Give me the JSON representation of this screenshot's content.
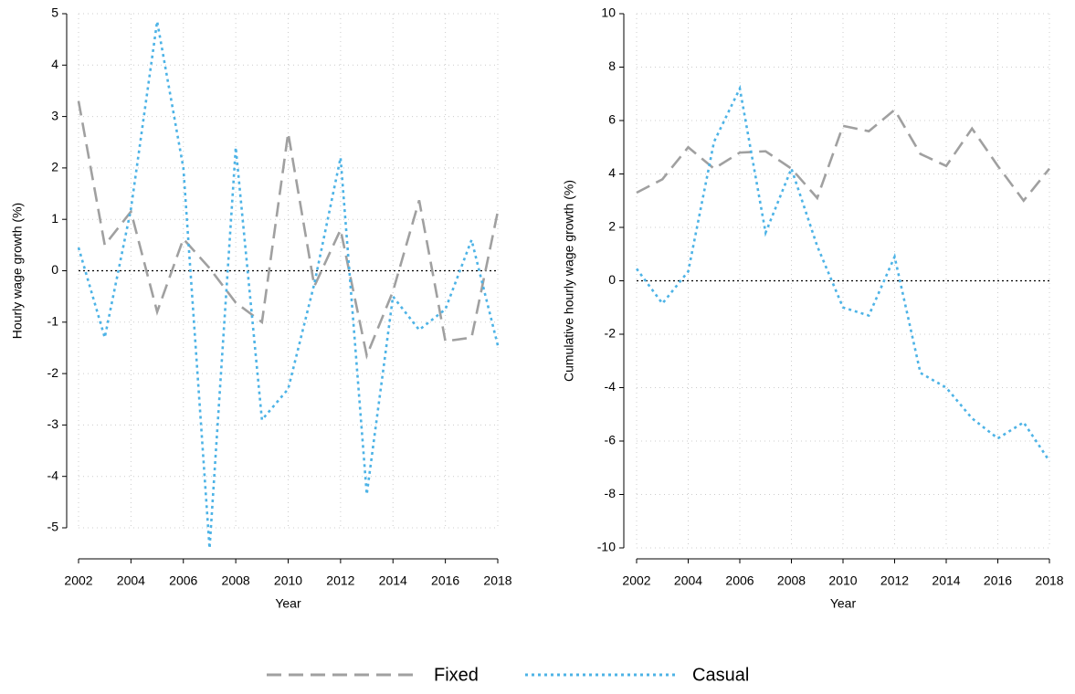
{
  "chart_data": [
    {
      "type": "line",
      "ylabel": "Hourly wage growth (%)",
      "xlabel": "Year",
      "x": [
        2002,
        2003,
        2004,
        2005,
        2006,
        2007,
        2008,
        2009,
        2010,
        2011,
        2012,
        2013,
        2014,
        2015,
        2016,
        2017,
        2018
      ],
      "series": [
        {
          "name": "Fixed",
          "color": "#a0a0a0",
          "dash": "dashed",
          "values": [
            3.3,
            0.5,
            1.15,
            -0.8,
            0.62,
            0.05,
            -0.62,
            -1.0,
            2.68,
            -0.3,
            0.8,
            -1.65,
            -0.4,
            1.37,
            -1.37,
            -1.3,
            1.15
          ]
        },
        {
          "name": "Casual",
          "color": "#4db3e6",
          "dash": "dotted",
          "values": [
            0.45,
            -1.3,
            1.2,
            4.85,
            2.0,
            -5.4,
            2.4,
            -2.9,
            -2.3,
            -0.25,
            2.2,
            -4.35,
            -0.5,
            -1.15,
            -0.75,
            0.6,
            -1.45
          ]
        }
      ],
      "xlim": [
        2002,
        2018
      ],
      "xticks": [
        2002,
        2004,
        2006,
        2008,
        2010,
        2012,
        2014,
        2016,
        2018
      ],
      "ylim": [
        -5,
        5
      ],
      "yticks": [
        -5,
        -4,
        -3,
        -2,
        -1,
        0,
        1,
        2,
        3,
        4,
        5
      ],
      "grid": true,
      "refline": 0
    },
    {
      "type": "line",
      "ylabel": "Cumulative hourly wage growth (%)",
      "xlabel": "Year",
      "x": [
        2002,
        2003,
        2004,
        2005,
        2006,
        2007,
        2008,
        2009,
        2010,
        2011,
        2012,
        2013,
        2014,
        2015,
        2016,
        2017,
        2018
      ],
      "series": [
        {
          "name": "Fixed",
          "color": "#a0a0a0",
          "dash": "dashed",
          "values": [
            3.3,
            3.8,
            5.0,
            4.2,
            4.8,
            4.85,
            4.2,
            3.1,
            5.8,
            5.6,
            6.4,
            4.75,
            4.3,
            5.7,
            4.3,
            3.0,
            4.2
          ]
        },
        {
          "name": "Casual",
          "color": "#4db3e6",
          "dash": "dotted",
          "values": [
            0.45,
            -0.85,
            0.35,
            5.2,
            7.2,
            1.8,
            4.2,
            1.3,
            -1.0,
            -1.3,
            0.9,
            -3.45,
            -4.0,
            -5.15,
            -5.9,
            -5.3,
            -6.75
          ]
        }
      ],
      "xlim": [
        2002,
        2018
      ],
      "xticks": [
        2002,
        2004,
        2006,
        2008,
        2010,
        2012,
        2014,
        2016,
        2018
      ],
      "ylim": [
        -10,
        10
      ],
      "yticks": [
        -10,
        -8,
        -6,
        -4,
        -2,
        0,
        2,
        4,
        6,
        8,
        10
      ],
      "grid": true,
      "refline": 0
    }
  ]
}
